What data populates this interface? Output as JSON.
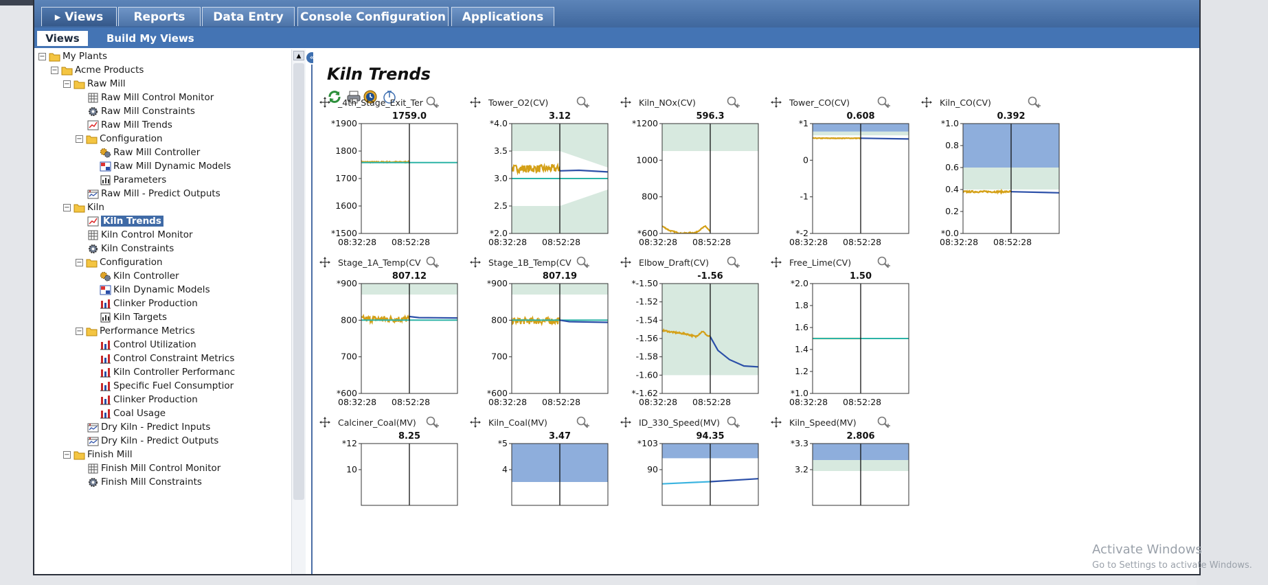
{
  "tabs": [
    {
      "label": "▸ Views",
      "active": true
    },
    {
      "label": "Reports"
    },
    {
      "label": "Data Entry"
    },
    {
      "label": "Console Configuration"
    },
    {
      "label": "Applications"
    }
  ],
  "subtabs": [
    {
      "label": "Views",
      "active": true
    },
    {
      "label": "Build My Views"
    }
  ],
  "tree": [
    {
      "label": "My Plants",
      "level": 0,
      "icon": "folder",
      "toggle": "−"
    },
    {
      "label": "Acme Products",
      "level": 1,
      "icon": "folder",
      "toggle": "−"
    },
    {
      "label": "Raw Mill",
      "level": 2,
      "icon": "folder",
      "toggle": "−"
    },
    {
      "label": "Raw Mill Control Monitor",
      "level": 3,
      "icon": "table"
    },
    {
      "label": "Raw Mill Constraints",
      "level": 3,
      "icon": "gear"
    },
    {
      "label": "Raw Mill Trends",
      "level": 3,
      "icon": "trend"
    },
    {
      "label": "Configuration",
      "level": 3,
      "icon": "folder",
      "toggle": "−"
    },
    {
      "label": "Raw Mill Controller",
      "level": 4,
      "icon": "gears"
    },
    {
      "label": "Raw Mill Dynamic Models",
      "level": 4,
      "icon": "model"
    },
    {
      "label": "Parameters",
      "level": 4,
      "icon": "params"
    },
    {
      "label": "Raw Mill - Predict Outputs",
      "level": 3,
      "icon": "predict"
    },
    {
      "label": "Kiln",
      "level": 2,
      "icon": "folder",
      "toggle": "−"
    },
    {
      "label": "Kiln Trends",
      "level": 3,
      "icon": "trend",
      "selected": true
    },
    {
      "label": "Kiln Control Monitor",
      "level": 3,
      "icon": "table"
    },
    {
      "label": "Kiln Constraints",
      "level": 3,
      "icon": "gear"
    },
    {
      "label": "Configuration",
      "level": 3,
      "icon": "folder",
      "toggle": "−"
    },
    {
      "label": "Kiln Controller",
      "level": 4,
      "icon": "gears"
    },
    {
      "label": "Kiln Dynamic Models",
      "level": 4,
      "icon": "model"
    },
    {
      "label": "Clinker Production",
      "level": 4,
      "icon": "bars"
    },
    {
      "label": "Kiln Targets",
      "level": 4,
      "icon": "params"
    },
    {
      "label": "Performance Metrics",
      "level": 3,
      "icon": "folder",
      "toggle": "−"
    },
    {
      "label": "Control Utilization",
      "level": 4,
      "icon": "bars"
    },
    {
      "label": "Control Constraint Metrics",
      "level": 4,
      "icon": "bars"
    },
    {
      "label": "Kiln Controller Performanc",
      "level": 4,
      "icon": "bars"
    },
    {
      "label": "Specific Fuel Consumptior",
      "level": 4,
      "icon": "bars"
    },
    {
      "label": "Clinker Production",
      "level": 4,
      "icon": "bars"
    },
    {
      "label": "Coal Usage",
      "level": 4,
      "icon": "bars"
    },
    {
      "label": "Dry Kiln - Predict Inputs",
      "level": 3,
      "icon": "predict"
    },
    {
      "label": "Dry Kiln - Predict Outputs",
      "level": 3,
      "icon": "predict"
    },
    {
      "label": "Finish Mill",
      "level": 2,
      "icon": "folder",
      "toggle": "−"
    },
    {
      "label": "Finish Mill Control Monitor",
      "level": 3,
      "icon": "table"
    },
    {
      "label": "Finish Mill Constraints",
      "level": 3,
      "icon": "gear"
    }
  ],
  "page_title": "Kiln Trends",
  "watermark": {
    "line1": "Activate Windows",
    "line2": "Go to Settings to activate Windows."
  },
  "colors": {
    "history": "#d4a017",
    "prediction": "#2b4fa8",
    "setpoint": "#2bb3a6",
    "limit_band": "#d7e9df",
    "limit_blue": "#8eaedc"
  },
  "chart_data": [
    {
      "type": "line",
      "title": "_4th_Stage_Exit_Ter",
      "value": "1759.0",
      "ylim": [
        1500,
        1900
      ],
      "yticks": [
        "*1500",
        "1600",
        "1700",
        "1800",
        "*1900"
      ],
      "xticks": [
        "08:32:28",
        "08:52:28"
      ],
      "bands": [],
      "series": [
        {
          "name": "history",
          "color": "#d4a017",
          "x": [
            0,
            0.5
          ],
          "y": [
            1760,
            1760
          ],
          "noise": 2
        },
        {
          "name": "setpoint",
          "color": "#2bb3a6",
          "x": [
            0,
            1
          ],
          "y": [
            1758,
            1758
          ],
          "noise": 0
        }
      ]
    },
    {
      "type": "line",
      "title": "Tower_O2(CV)",
      "value": "3.12",
      "ylim": [
        2.0,
        4.0
      ],
      "yticks": [
        "*2.0",
        "2.5",
        "3.0",
        "3.5",
        "*4.0"
      ],
      "xticks": [
        "08:32:28",
        "08:52:28"
      ],
      "bands": [
        {
          "x": [
            0,
            0.5,
            1
          ],
          "y0": [
            2.5,
            2.5,
            2.8
          ],
          "y1": [
            3.5,
            3.5,
            3.2
          ],
          "color": "#d7e9df",
          "invert": true
        }
      ],
      "series": [
        {
          "name": "history",
          "color": "#d4a017",
          "x": [
            0,
            0.5
          ],
          "y": [
            3.18,
            3.18
          ],
          "noise": 0.07
        },
        {
          "name": "setpoint",
          "color": "#2bb3a6",
          "x": [
            0,
            1
          ],
          "y": [
            3.0,
            3.0
          ],
          "noise": 0
        },
        {
          "name": "prediction",
          "color": "#2b4fa8",
          "x": [
            0.5,
            0.7,
            1
          ],
          "y": [
            3.14,
            3.15,
            3.12
          ],
          "noise": 0
        }
      ]
    },
    {
      "type": "line",
      "title": "Kiln_NOx(CV)",
      "value": "596.3",
      "ylim": [
        600,
        1200
      ],
      "yticks": [
        "*600",
        "800",
        "1000",
        "*1200"
      ],
      "xticks": [
        "08:32:28",
        "08:52:28"
      ],
      "bands": [
        {
          "x": [
            0,
            1
          ],
          "y0": [
            1050,
            1050
          ],
          "y1": [
            1200,
            1200
          ],
          "color": "#d7e9df"
        }
      ],
      "series": [
        {
          "name": "history",
          "color": "#d4a017",
          "x": [
            0,
            0.08,
            0.2,
            0.35,
            0.45,
            0.5
          ],
          "y": [
            640,
            615,
            600,
            605,
            640,
            610
          ],
          "noise": 3
        }
      ]
    },
    {
      "type": "line",
      "title": "Tower_CO(CV)",
      "value": "0.608",
      "ylim": [
        -2,
        1
      ],
      "yticks": [
        "*-2",
        "-1",
        "0",
        "*1"
      ],
      "xticks": [
        "08:32:28",
        "08:52:28"
      ],
      "bands": [
        {
          "x": [
            0,
            1
          ],
          "y0": [
            0.78,
            0.78
          ],
          "y1": [
            1,
            1
          ],
          "color": "#8eaedc"
        },
        {
          "x": [
            0,
            1
          ],
          "y0": [
            0.68,
            0.68
          ],
          "y1": [
            0.78,
            0.78
          ],
          "color": "#d7e9df"
        }
      ],
      "series": [
        {
          "name": "history",
          "color": "#d4a017",
          "x": [
            0,
            0.5
          ],
          "y": [
            0.6,
            0.6
          ],
          "noise": 0.008
        },
        {
          "name": "prediction",
          "color": "#2b4fa8",
          "x": [
            0.5,
            1
          ],
          "y": [
            0.6,
            0.58
          ],
          "noise": 0
        }
      ]
    },
    {
      "type": "line",
      "title": "Kiln_CO(CV)",
      "value": "0.392",
      "ylim": [
        0.0,
        1.0
      ],
      "yticks": [
        "*0.0",
        "0.2",
        "0.4",
        "0.6",
        "0.8",
        "*1.0"
      ],
      "xticks": [
        "08:32:28",
        "08:52:28"
      ],
      "bands": [
        {
          "x": [
            0,
            1
          ],
          "y0": [
            0.6,
            0.6
          ],
          "y1": [
            1.0,
            1.0
          ],
          "color": "#8eaedc"
        },
        {
          "x": [
            0,
            1
          ],
          "y0": [
            0.4,
            0.4
          ],
          "y1": [
            0.6,
            0.6
          ],
          "color": "#d7e9df"
        }
      ],
      "series": [
        {
          "name": "history",
          "color": "#d4a017",
          "x": [
            0,
            0.5
          ],
          "y": [
            0.38,
            0.38
          ],
          "noise": 0.008
        },
        {
          "name": "prediction",
          "color": "#2b4fa8",
          "x": [
            0.5,
            1
          ],
          "y": [
            0.38,
            0.37
          ],
          "noise": 0
        }
      ]
    },
    {
      "type": "line",
      "title": "Stage_1A_Temp(CV",
      "value": "807.12",
      "ylim": [
        600,
        900
      ],
      "yticks": [
        "*600",
        "700",
        "800",
        "*900"
      ],
      "xticks": [
        "08:32:28",
        "08:52:28"
      ],
      "bands": [
        {
          "x": [
            0,
            1
          ],
          "y0": [
            870,
            870
          ],
          "y1": [
            900,
            900
          ],
          "color": "#d7e9df"
        }
      ],
      "series": [
        {
          "name": "history",
          "color": "#d4a017",
          "x": [
            0,
            0.5
          ],
          "y": [
            803,
            803
          ],
          "noise": 9
        },
        {
          "name": "setpoint",
          "color": "#2bb3a6",
          "x": [
            0,
            1
          ],
          "y": [
            800,
            800
          ],
          "noise": 0
        },
        {
          "name": "prediction",
          "color": "#2b4fa8",
          "x": [
            0.5,
            0.6,
            1
          ],
          "y": [
            810,
            807,
            806
          ],
          "noise": 0
        }
      ]
    },
    {
      "type": "line",
      "title": "Stage_1B_Temp(CV",
      "value": "807.19",
      "ylim": [
        600,
        900
      ],
      "yticks": [
        "*600",
        "700",
        "800",
        "*900"
      ],
      "xticks": [
        "08:32:28",
        "08:52:28"
      ],
      "bands": [
        {
          "x": [
            0,
            1
          ],
          "y0": [
            870,
            870
          ],
          "y1": [
            900,
            900
          ],
          "color": "#d7e9df"
        }
      ],
      "series": [
        {
          "name": "history",
          "color": "#d4a017",
          "x": [
            0,
            0.5
          ],
          "y": [
            798,
            798
          ],
          "noise": 9
        },
        {
          "name": "setpoint",
          "color": "#2bb3a6",
          "x": [
            0,
            1
          ],
          "y": [
            800,
            800
          ],
          "noise": 0
        },
        {
          "name": "prediction",
          "color": "#2b4fa8",
          "x": [
            0.5,
            0.6,
            1
          ],
          "y": [
            800,
            796,
            794
          ],
          "noise": 0
        }
      ]
    },
    {
      "type": "line",
      "title": "Elbow_Draft(CV)",
      "value": "-1.56",
      "ylim": [
        -1.62,
        -1.5
      ],
      "yticks": [
        "*-1.62",
        "-1.60",
        "-1.58",
        "-1.56",
        "-1.54",
        "-1.52",
        "*-1.50"
      ],
      "xticks": [
        "08:32:28",
        "08:52:28"
      ],
      "bands": [
        {
          "x": [
            0,
            1
          ],
          "y0": [
            -1.6,
            -1.6
          ],
          "y1": [
            -1.5,
            -1.5
          ],
          "color": "#d7e9df"
        }
      ],
      "series": [
        {
          "name": "history",
          "color": "#d4a017",
          "x": [
            0,
            0.1,
            0.25,
            0.35,
            0.42,
            0.47,
            0.5
          ],
          "y": [
            -1.551,
            -1.553,
            -1.555,
            -1.558,
            -1.552,
            -1.557,
            -1.558
          ],
          "noise": 0.0008
        },
        {
          "name": "prediction",
          "color": "#2b4fa8",
          "x": [
            0.5,
            0.58,
            0.7,
            0.85,
            1
          ],
          "y": [
            -1.558,
            -1.573,
            -1.583,
            -1.59,
            -1.591
          ],
          "noise": 0
        }
      ]
    },
    {
      "type": "line",
      "title": "Free_Lime(CV)",
      "value": "1.50",
      "ylim": [
        1.0,
        2.0
      ],
      "yticks": [
        "*1.0",
        "1.2",
        "1.4",
        "1.6",
        "1.8",
        "*2.0"
      ],
      "xticks": [
        "08:32:28",
        "08:52:28"
      ],
      "bands": [],
      "series": [
        {
          "name": "history",
          "color": "#d4a017",
          "x": [
            0,
            0.5
          ],
          "y": [
            1.5,
            1.5
          ],
          "noise": 0
        },
        {
          "name": "setpoint",
          "color": "#2bb3a6",
          "x": [
            0,
            1
          ],
          "y": [
            1.5,
            1.5
          ],
          "noise": 0
        }
      ]
    },
    {
      "type": "line",
      "title": "Calciner_Coal(MV)",
      "value": "8.25",
      "ylim": [
        8,
        12
      ],
      "yticks": [
        "10",
        "*12"
      ],
      "xticks": [],
      "bands": [],
      "series": [],
      "partial": true
    },
    {
      "type": "line",
      "title": "Kiln_Coal(MV)",
      "value": "3.47",
      "ylim": [
        3,
        5
      ],
      "yticks": [
        "4",
        "*5"
      ],
      "xticks": [],
      "partial": true,
      "bands": [
        {
          "x": [
            0,
            1
          ],
          "y0": [
            4.3,
            4.3
          ],
          "y1": [
            5,
            5
          ],
          "color": "#8eaedc"
        }
      ],
      "series": []
    },
    {
      "type": "line",
      "title": "ID_330_Speed(MV)",
      "value": "94.35",
      "ylim": [
        88,
        103
      ],
      "yticks": [
        "90",
        "*103"
      ],
      "xticks": [],
      "partial": true,
      "bands": [
        {
          "x": [
            0,
            1
          ],
          "y0": [
            101,
            101
          ],
          "y1": [
            103,
            103
          ],
          "color": "#8eaedc"
        }
      ],
      "series": [
        {
          "name": "history",
          "color": "#3cb4e0",
          "x": [
            0,
            0.5
          ],
          "y": [
            97.5,
            97.8
          ],
          "noise": 0
        },
        {
          "name": "prediction",
          "color": "#2b4fa8",
          "x": [
            0.5,
            1
          ],
          "y": [
            97.8,
            98.2
          ],
          "noise": 0
        }
      ]
    },
    {
      "type": "line",
      "title": "Kiln_Speed(MV)",
      "value": "2.806",
      "ylim": [
        3.1,
        3.3
      ],
      "yticks": [
        "3.2",
        "*3.3"
      ],
      "xticks": [],
      "partial": true,
      "bands": [
        {
          "x": [
            0,
            1
          ],
          "y0": [
            3.27,
            3.27
          ],
          "y1": [
            3.3,
            3.3
          ],
          "color": "#8eaedc"
        },
        {
          "x": [
            0,
            1
          ],
          "y0": [
            3.25,
            3.25
          ],
          "y1": [
            3.27,
            3.27
          ],
          "color": "#d7e9df"
        }
      ],
      "series": []
    }
  ]
}
